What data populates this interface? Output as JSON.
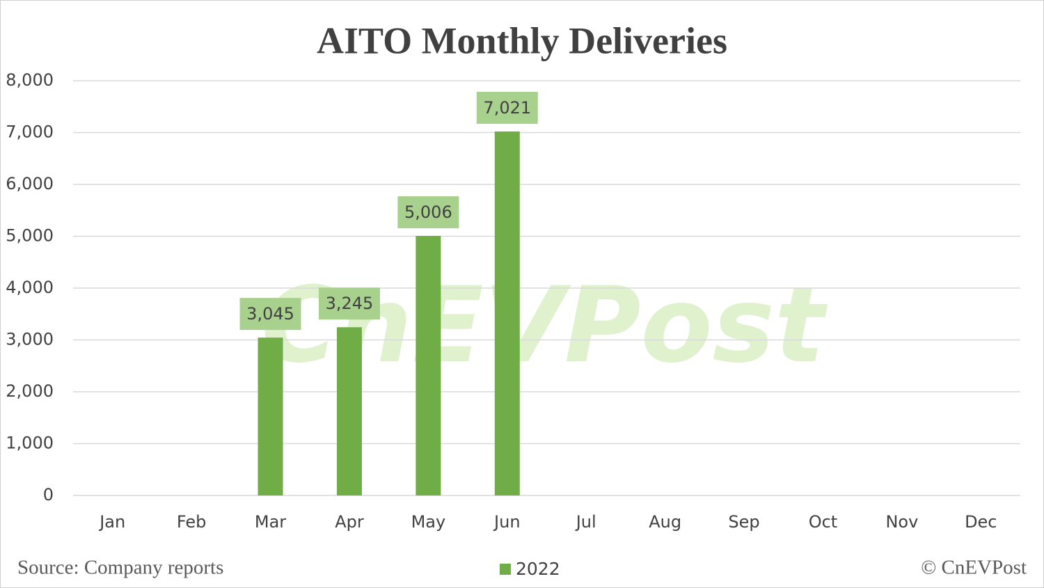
{
  "chart_data": {
    "type": "bar",
    "title": "AITO Monthly Deliveries",
    "categories": [
      "Jan",
      "Feb",
      "Mar",
      "Apr",
      "May",
      "Jun",
      "Jul",
      "Aug",
      "Sep",
      "Oct",
      "Nov",
      "Dec"
    ],
    "series": [
      {
        "name": "2022",
        "color": "#70ad47",
        "values": [
          null,
          null,
          3045,
          3245,
          5006,
          7021,
          null,
          null,
          null,
          null,
          null,
          null
        ],
        "value_labels": [
          null,
          null,
          "3,045",
          "3,245",
          "5,006",
          "7,021",
          null,
          null,
          null,
          null,
          null,
          null
        ]
      }
    ],
    "ylim": [
      0,
      8000
    ],
    "yticks": [
      0,
      {
        "value": 1000,
        "label": "1,000"
      },
      {
        "value": 2000,
        "label": "2,000"
      },
      {
        "value": 3000,
        "label": "3,000"
      },
      {
        "value": 4000,
        "label": "4,000"
      },
      {
        "value": 5000,
        "label": "5,000"
      },
      {
        "value": 6000,
        "label": "6,000"
      },
      {
        "value": 7000,
        "label": "7,000"
      },
      {
        "value": 8000,
        "label": "8,000"
      }
    ],
    "grid": true,
    "legend": "bottom",
    "source": "Source: Company reports",
    "credit": "© CnEVPost",
    "watermark": "CnEVPost"
  }
}
